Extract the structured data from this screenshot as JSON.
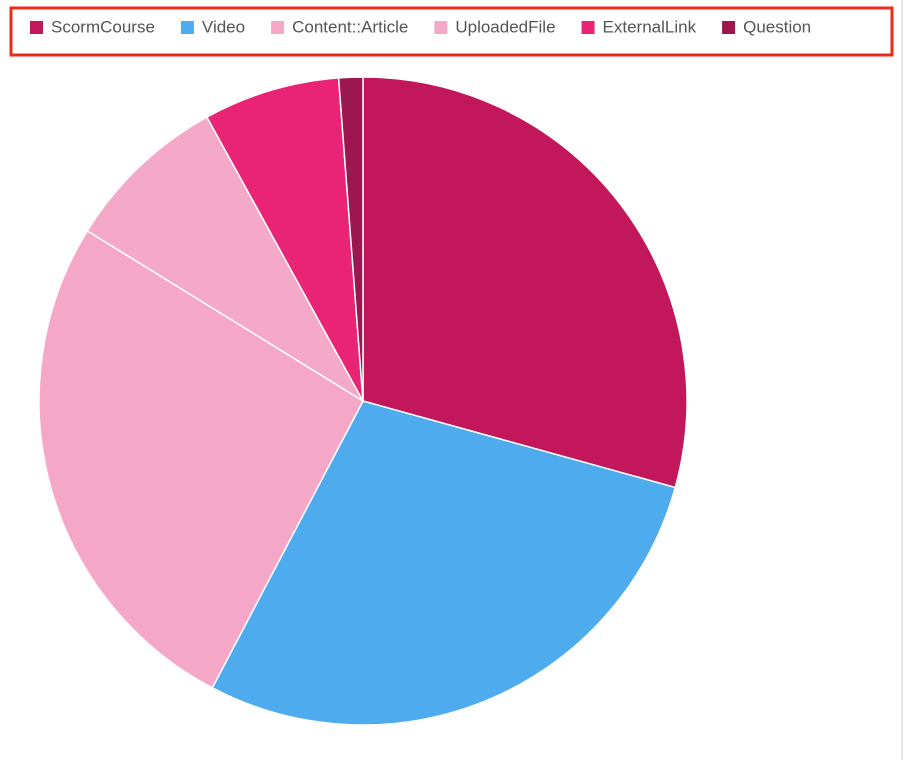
{
  "chart_data": {
    "type": "pie",
    "categories": [
      "ScormCourse",
      "Video",
      "Content::Article",
      "UploadedFile",
      "ExternalLink",
      "Question"
    ],
    "values": [
      29.3,
      28.4,
      26.1,
      8.2,
      6.8,
      1.2
    ],
    "colors": [
      "#c2185b",
      "#4eabee",
      "#f5a7c7",
      "#f5a9c8",
      "#e92474",
      "#9c1650"
    ],
    "legend": "top"
  }
}
